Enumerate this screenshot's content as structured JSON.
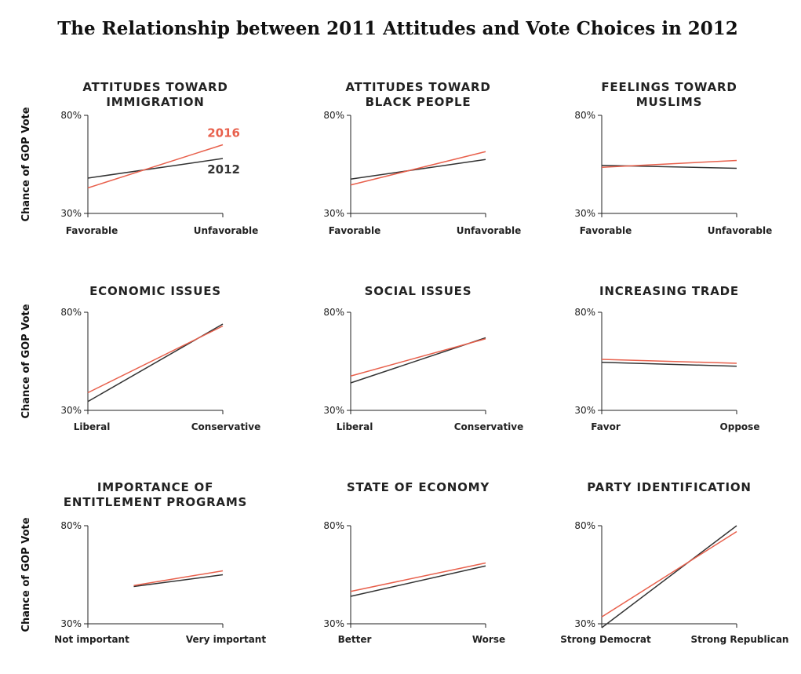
{
  "title": "The Relationship between 2011 Attitudes and Vote Choices in 2012",
  "colors": {
    "s2016": "#e8604c",
    "s2012": "#333333",
    "axis": "#222222"
  },
  "chart_data": [
    {
      "type": "line",
      "title_lines": [
        "ATTITUDES TOWARD",
        "IMMIGRATION"
      ],
      "ylabel": "Chance of GOP Vote",
      "x": [
        "Favorable",
        "Unfavorable"
      ],
      "ylim": [
        30,
        80
      ],
      "yticks": [
        "30%",
        "80%"
      ],
      "series_labels_shown": true,
      "series": [
        {
          "name": "2016",
          "values": [
            43,
            65
          ]
        },
        {
          "name": "2012",
          "values": [
            48,
            58
          ]
        }
      ]
    },
    {
      "type": "line",
      "title_lines": [
        "ATTITUDES TOWARD",
        "BLACK PEOPLE"
      ],
      "ylabel": "",
      "x": [
        "Favorable",
        "Unfavorable"
      ],
      "ylim": [
        30,
        80
      ],
      "yticks": [
        "30%",
        "80%"
      ],
      "series": [
        {
          "name": "2016",
          "values": [
            44.5,
            61.5
          ]
        },
        {
          "name": "2012",
          "values": [
            47.5,
            57.5
          ]
        }
      ]
    },
    {
      "type": "line",
      "title_lines": [
        "FEELINGS TOWARD",
        "MUSLIMS"
      ],
      "ylabel": "",
      "x": [
        "Favorable",
        "Unfavorable"
      ],
      "ylim": [
        30,
        80
      ],
      "yticks": [
        "30%",
        "80%"
      ],
      "series": [
        {
          "name": "2016",
          "values": [
            53.5,
            57
          ]
        },
        {
          "name": "2012",
          "values": [
            54.5,
            53
          ]
        }
      ]
    },
    {
      "type": "line",
      "title_lines": [
        "ECONOMIC ISSUES"
      ],
      "ylabel": "Chance of GOP Vote",
      "x": [
        "Liberal",
        "Conservative"
      ],
      "ylim": [
        30,
        80
      ],
      "yticks": [
        "30%",
        "80%"
      ],
      "series": [
        {
          "name": "2016",
          "values": [
            39,
            73
          ]
        },
        {
          "name": "2012",
          "values": [
            34.5,
            74
          ]
        }
      ]
    },
    {
      "type": "line",
      "title_lines": [
        "SOCIAL ISSUES"
      ],
      "ylabel": "",
      "x": [
        "Liberal",
        "Conservative"
      ],
      "ylim": [
        30,
        80
      ],
      "yticks": [
        "30%",
        "80%"
      ],
      "series": [
        {
          "name": "2016",
          "values": [
            47.5,
            66.5
          ]
        },
        {
          "name": "2012",
          "values": [
            44,
            67
          ]
        }
      ]
    },
    {
      "type": "line",
      "title_lines": [
        "INCREASING TRADE"
      ],
      "ylabel": "",
      "x": [
        "Favor",
        "Oppose"
      ],
      "ylim": [
        30,
        80
      ],
      "yticks": [
        "30%",
        "80%"
      ],
      "series": [
        {
          "name": "2016",
          "values": [
            56,
            54
          ]
        },
        {
          "name": "2012",
          "values": [
            54.5,
            52.5
          ]
        }
      ]
    },
    {
      "type": "line",
      "title_lines": [
        "IMPORTANCE OF",
        "ENTITLEMENT PROGRAMS"
      ],
      "ylabel": "Chance of GOP Vote",
      "x": [
        "Not important",
        "Very important"
      ],
      "ylim": [
        30,
        80
      ],
      "yticks": [
        "30%",
        "80%"
      ],
      "series": [
        {
          "name": "2016",
          "values": [
            49.5,
            57
          ]
        },
        {
          "name": "2012",
          "values": [
            49,
            55
          ]
        }
      ],
      "x_start_fraction": 0.34
    },
    {
      "type": "line",
      "title_lines": [
        "STATE OF ECONOMY"
      ],
      "ylabel": "",
      "x": [
        "Better",
        "Worse"
      ],
      "ylim": [
        30,
        80
      ],
      "yticks": [
        "30%",
        "80%"
      ],
      "series": [
        {
          "name": "2016",
          "values": [
            46.5,
            61
          ]
        },
        {
          "name": "2012",
          "values": [
            44,
            59.5
          ]
        }
      ]
    },
    {
      "type": "line",
      "title_lines": [
        "PARTY IDENTIFICATION"
      ],
      "ylabel": "",
      "x": [
        "Strong Democrat",
        "Strong Republican"
      ],
      "ylim": [
        30,
        80
      ],
      "yticks": [
        "30%",
        "80%"
      ],
      "series": [
        {
          "name": "2016",
          "values": [
            33.5,
            77
          ]
        },
        {
          "name": "2012",
          "values": [
            28,
            80
          ]
        }
      ]
    }
  ]
}
